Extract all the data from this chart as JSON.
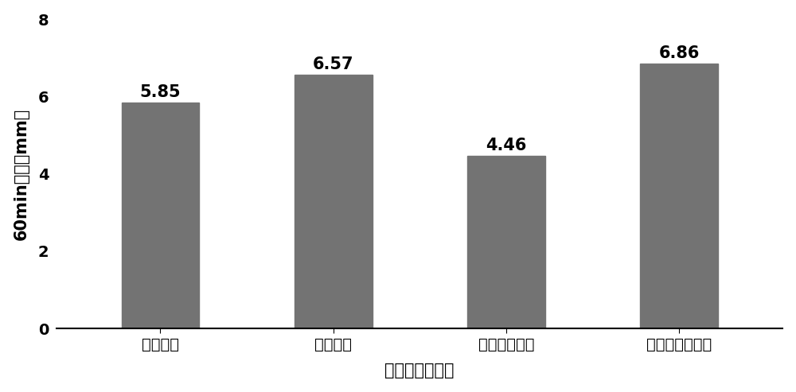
{
  "categories": [
    "上层加强",
    "下层加强",
    "上下层均加强",
    "上下层均不加强"
  ],
  "values": [
    5.85,
    6.57,
    4.46,
    6.86
  ],
  "bar_color": "#737373",
  "ylabel": "60min变形（mm）",
  "xlabel": "结构层加强方案",
  "ylim": [
    0,
    8
  ],
  "yticks": [
    0,
    2,
    4,
    6,
    8
  ],
  "bar_width": 0.45,
  "label_fontsize": 15,
  "tick_fontsize": 14,
  "value_fontsize": 15,
  "background_color": "#ffffff"
}
